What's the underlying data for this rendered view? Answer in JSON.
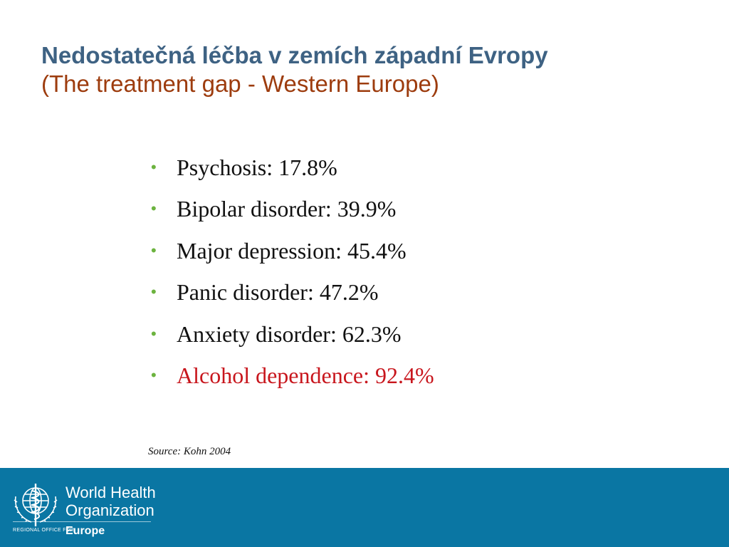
{
  "title": {
    "main": "Nedostatečná léčba v zemích západní Evropy",
    "subtitle": "(The treatment gap - Western Europe)"
  },
  "bullets": [
    {
      "text": "Psychosis: 17.8%"
    },
    {
      "text": "Bipolar disorder: 39.9%"
    },
    {
      "text": "Major depression: 45.4%"
    },
    {
      "text": "Panic disorder: 47.2%"
    },
    {
      "text": "Anxiety disorder: 62.3%"
    },
    {
      "text": "Alcohol dependence: 92.4%"
    }
  ],
  "bullet_symbol": "•",
  "source": "Source: Kohn 2004",
  "footer": {
    "org_line1": "World Health",
    "org_line2": "Organization",
    "regional": "REGIONAL OFFICE FOR",
    "region": "Europe"
  },
  "colors": {
    "title": "#3e6283",
    "subtitle": "#9d3c0e",
    "bullet_dot": "#6cb33f",
    "highlight": "#c8161d",
    "footer_bg": "#0a76a3"
  }
}
